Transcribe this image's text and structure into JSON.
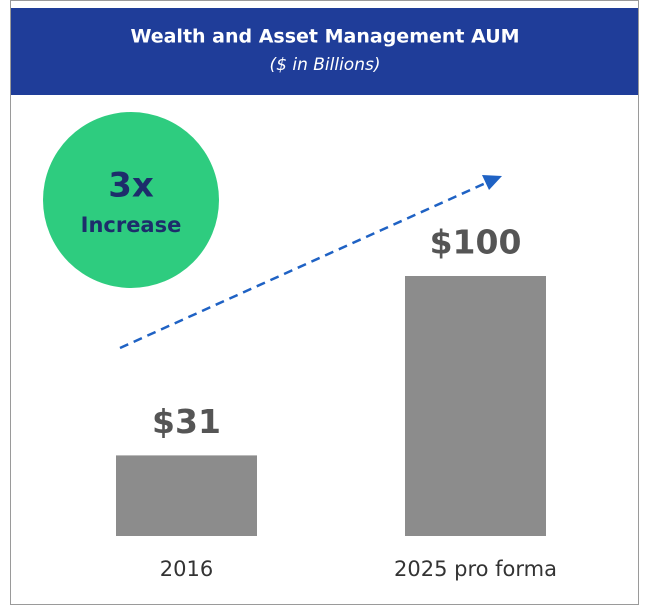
{
  "chart_data": {
    "type": "bar",
    "title": "Wealth and Asset Management AUM",
    "subtitle": "($ in Billions)",
    "categories": [
      "2016",
      "2025 pro forma"
    ],
    "values": [
      31,
      100
    ],
    "value_labels": [
      "$31",
      "$100"
    ],
    "color": "#8c8c8c",
    "annotations": [
      "3x",
      "Increase"
    ]
  }
}
